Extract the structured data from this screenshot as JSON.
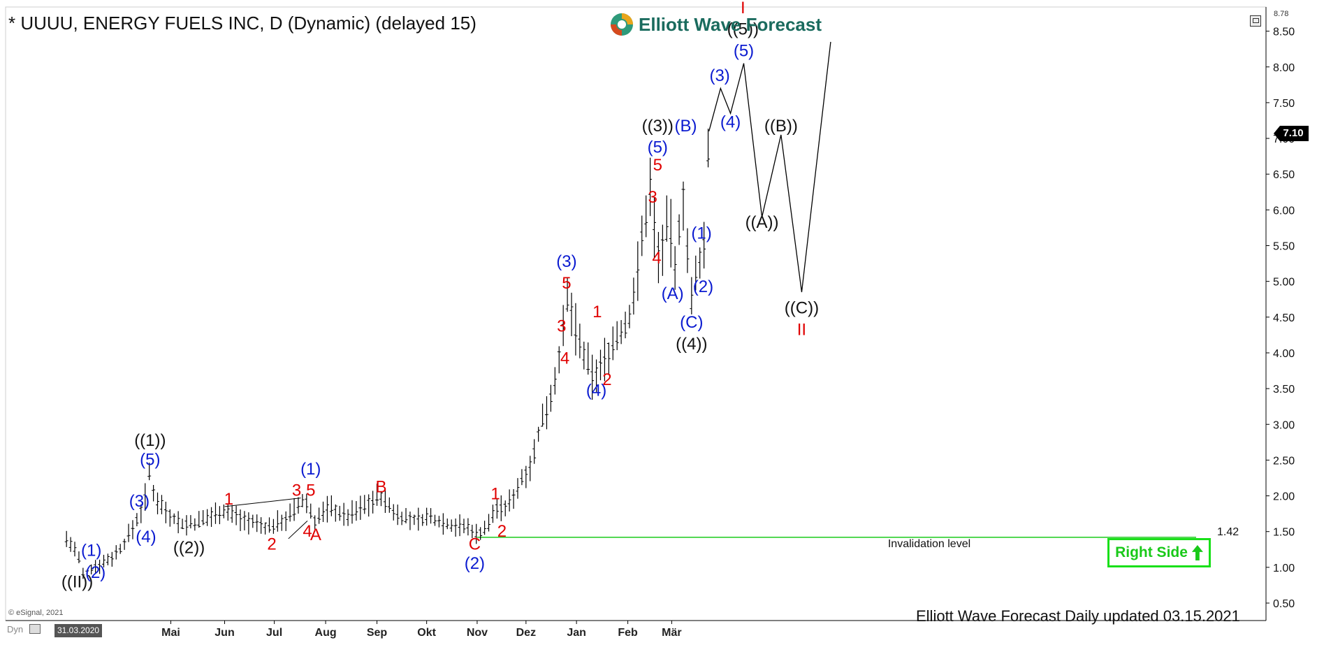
{
  "title": "* UUUU, ENERGY FUELS INC, D (Dynamic) (delayed 15)",
  "brand": "Elliott Wave Forecast",
  "copyright": "© eSignal, 2021",
  "dyn_label": "Dyn",
  "start_date": "31.03.2020",
  "footer_note": "Elliott Wave Forecast Daily updated 03.15.2021",
  "invalidation_text": "Invalidation level",
  "invalidation_value": "1.42",
  "right_side_label": "Right Side",
  "current_price": "7.10",
  "top_price": "8.78",
  "colors": {
    "red": "#e00000",
    "blue": "#0a1ad0",
    "black": "#111111",
    "green": "#19c919",
    "bars": "#000000"
  },
  "chart_data": {
    "type": "line",
    "ylim": [
      0.3,
      8.8
    ],
    "yticks": [
      "0.50",
      "1.00",
      "1.50",
      "2.00",
      "2.50",
      "3.00",
      "3.50",
      "4.00",
      "4.50",
      "5.00",
      "5.50",
      "6.00",
      "6.50",
      "7.00",
      "7.50",
      "8.00",
      "8.50"
    ],
    "xticks": [
      {
        "label": "Mai",
        "pos": 0.08
      },
      {
        "label": "Jun",
        "pos": 0.73
      },
      {
        "label": "Jul",
        "pos": 1.33
      },
      {
        "label": "Aug",
        "pos": 1.95
      },
      {
        "label": "Sep",
        "pos": 2.57
      },
      {
        "label": "Okt",
        "pos": 3.17
      },
      {
        "label": "Nov",
        "pos": 3.78
      },
      {
        "label": "Dez",
        "pos": 4.37
      },
      {
        "label": "Jan",
        "pos": 4.98
      },
      {
        "label": "Feb",
        "pos": 5.6
      },
      {
        "label": "Mär",
        "pos": 6.13
      }
    ],
    "price_path": [
      [
        -1.18,
        1.4
      ],
      [
        -1.05,
        1.2
      ],
      [
        -0.97,
        0.85
      ],
      [
        -0.87,
        1.0
      ],
      [
        -0.77,
        1.05
      ],
      [
        -0.62,
        1.15
      ],
      [
        -0.5,
        1.3
      ],
      [
        -0.38,
        1.55
      ],
      [
        -0.25,
        1.85
      ],
      [
        -0.18,
        2.3
      ],
      [
        -0.12,
        2.0
      ],
      [
        0.05,
        1.75
      ],
      [
        0.22,
        1.6
      ],
      [
        0.4,
        1.62
      ],
      [
        0.7,
        1.8
      ],
      [
        1.0,
        1.65
      ],
      [
        1.25,
        1.55
      ],
      [
        1.5,
        1.7
      ],
      [
        1.7,
        1.95
      ],
      [
        1.82,
        1.65
      ],
      [
        2.0,
        1.85
      ],
      [
        2.2,
        1.7
      ],
      [
        2.4,
        1.85
      ],
      [
        2.6,
        2.0
      ],
      [
        2.8,
        1.75
      ],
      [
        3.0,
        1.65
      ],
      [
        3.2,
        1.7
      ],
      [
        3.45,
        1.6
      ],
      [
        3.7,
        1.55
      ],
      [
        3.78,
        1.45
      ],
      [
        3.92,
        1.6
      ],
      [
        4.0,
        1.85
      ],
      [
        4.1,
        1.8
      ],
      [
        4.2,
        1.95
      ],
      [
        4.3,
        2.2
      ],
      [
        4.45,
        2.5
      ],
      [
        4.55,
        3.0
      ],
      [
        4.7,
        3.5
      ],
      [
        4.82,
        4.3
      ],
      [
        4.88,
        4.8
      ],
      [
        4.95,
        4.4
      ],
      [
        5.05,
        4.0
      ],
      [
        5.18,
        3.65
      ],
      [
        5.3,
        3.85
      ],
      [
        5.45,
        4.2
      ],
      [
        5.6,
        4.4
      ],
      [
        5.7,
        5.0
      ],
      [
        5.8,
        5.8
      ],
      [
        5.88,
        6.4
      ],
      [
        5.95,
        5.3
      ],
      [
        6.05,
        5.6
      ],
      [
        6.1,
        5.9
      ],
      [
        6.18,
        5.0
      ],
      [
        6.25,
        6.3
      ],
      [
        6.3,
        6.0
      ],
      [
        6.35,
        4.6
      ],
      [
        6.45,
        5.2
      ],
      [
        6.52,
        5.5
      ],
      [
        6.58,
        7.1
      ]
    ],
    "projection_path": [
      [
        6.58,
        7.1
      ],
      [
        6.72,
        7.7
      ],
      [
        6.84,
        7.35
      ],
      [
        7.0,
        8.05
      ],
      [
        7.22,
        5.9
      ],
      [
        7.45,
        7.05
      ],
      [
        7.7,
        4.85
      ],
      [
        8.05,
        8.35
      ]
    ],
    "trendlines": [
      {
        "from": [
          0.73,
          1.85
        ],
        "to": [
          1.65,
          1.97
        ]
      },
      {
        "from": [
          1.5,
          1.4
        ],
        "to": [
          1.73,
          1.65
        ]
      }
    ],
    "invalidation_level": 1.42,
    "wave_labels": [
      {
        "text": "((II))",
        "x": -1.05,
        "y": 0.72,
        "color": "black"
      },
      {
        "text": "(1)",
        "x": -0.88,
        "y": 1.16,
        "color": "blue"
      },
      {
        "text": "(2)",
        "x": -0.83,
        "y": 0.85,
        "color": "blue"
      },
      {
        "text": "(3)",
        "x": -0.3,
        "y": 1.85,
        "color": "blue"
      },
      {
        "text": "(4)",
        "x": -0.22,
        "y": 1.35,
        "color": "blue"
      },
      {
        "text": "(5)",
        "x": -0.17,
        "y": 2.43,
        "color": "blue"
      },
      {
        "text": "((1))",
        "x": -0.17,
        "y": 2.7,
        "color": "black"
      },
      {
        "text": "((2))",
        "x": 0.3,
        "y": 1.2,
        "color": "black"
      },
      {
        "text": "1",
        "x": 0.78,
        "y": 1.88,
        "color": "red"
      },
      {
        "text": "2",
        "x": 1.3,
        "y": 1.25,
        "color": "red"
      },
      {
        "text": "3",
        "x": 1.6,
        "y": 2.0,
        "color": "red"
      },
      {
        "text": "4",
        "x": 1.73,
        "y": 1.43,
        "color": "red"
      },
      {
        "text": "5",
        "x": 1.77,
        "y": 2.0,
        "color": "red"
      },
      {
        "text": "(1)",
        "x": 1.77,
        "y": 2.3,
        "color": "blue"
      },
      {
        "text": "A",
        "x": 1.83,
        "y": 1.38,
        "color": "red"
      },
      {
        "text": "B",
        "x": 2.62,
        "y": 2.05,
        "color": "red"
      },
      {
        "text": "C",
        "x": 3.75,
        "y": 1.25,
        "color": "red"
      },
      {
        "text": "(2)",
        "x": 3.75,
        "y": 0.98,
        "color": "blue"
      },
      {
        "text": "1",
        "x": 4.0,
        "y": 1.95,
        "color": "red"
      },
      {
        "text": "2",
        "x": 4.08,
        "y": 1.43,
        "color": "red"
      },
      {
        "text": "3",
        "x": 4.8,
        "y": 4.3,
        "color": "red"
      },
      {
        "text": "4",
        "x": 4.84,
        "y": 3.85,
        "color": "red"
      },
      {
        "text": "5",
        "x": 4.86,
        "y": 4.9,
        "color": "red"
      },
      {
        "text": "(3)",
        "x": 4.86,
        "y": 5.2,
        "color": "blue"
      },
      {
        "text": "1",
        "x": 5.23,
        "y": 4.5,
        "color": "red"
      },
      {
        "text": "2",
        "x": 5.35,
        "y": 3.55,
        "color": "red"
      },
      {
        "text": "(4)",
        "x": 5.22,
        "y": 3.4,
        "color": "blue"
      },
      {
        "text": "3",
        "x": 5.9,
        "y": 6.1,
        "color": "red"
      },
      {
        "text": "4",
        "x": 5.95,
        "y": 5.25,
        "color": "red"
      },
      {
        "text": "5",
        "x": 5.96,
        "y": 6.55,
        "color": "red"
      },
      {
        "text": "(5)",
        "x": 5.96,
        "y": 6.8,
        "color": "blue"
      },
      {
        "text": "((3))",
        "x": 5.96,
        "y": 7.1,
        "color": "black"
      },
      {
        "text": "(A)",
        "x": 6.14,
        "y": 4.75,
        "color": "blue"
      },
      {
        "text": "(B)",
        "x": 6.3,
        "y": 7.1,
        "color": "blue"
      },
      {
        "text": "(1)",
        "x": 6.49,
        "y": 5.6,
        "color": "blue"
      },
      {
        "text": "(2)",
        "x": 6.51,
        "y": 4.85,
        "color": "blue"
      },
      {
        "text": "(C)",
        "x": 6.37,
        "y": 4.35,
        "color": "blue"
      },
      {
        "text": "((4))",
        "x": 6.37,
        "y": 4.05,
        "color": "black"
      },
      {
        "text": "(3)",
        "x": 6.71,
        "y": 7.8,
        "color": "blue"
      },
      {
        "text": "(4)",
        "x": 6.84,
        "y": 7.15,
        "color": "blue"
      },
      {
        "text": "(5)",
        "x": 7.0,
        "y": 8.15,
        "color": "blue"
      },
      {
        "text": "((5))",
        "x": 6.99,
        "y": 8.45,
        "color": "black"
      },
      {
        "text": "I",
        "x": 6.99,
        "y": 8.75,
        "color": "red"
      },
      {
        "text": "((A))",
        "x": 7.22,
        "y": 5.75,
        "color": "black"
      },
      {
        "text": "((B))",
        "x": 7.45,
        "y": 7.1,
        "color": "black"
      },
      {
        "text": "((C))",
        "x": 7.7,
        "y": 4.55,
        "color": "black"
      },
      {
        "text": "II",
        "x": 7.7,
        "y": 4.25,
        "color": "red"
      }
    ]
  }
}
